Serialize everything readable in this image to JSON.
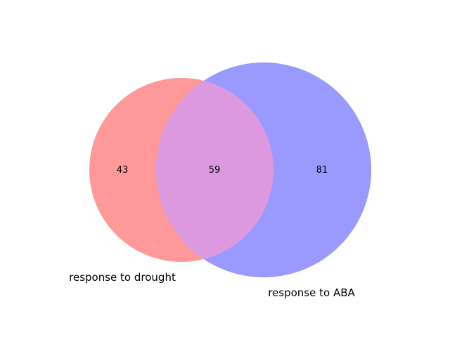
{
  "venn": {
    "sets": [
      {
        "label": "response to drought",
        "only_count": "43",
        "color": "#ff9999"
      },
      {
        "label": "response to ABA",
        "only_count": "81",
        "color": "#9999ff"
      }
    ],
    "intersection": {
      "count": "59",
      "color": "#dd99e0"
    }
  }
}
